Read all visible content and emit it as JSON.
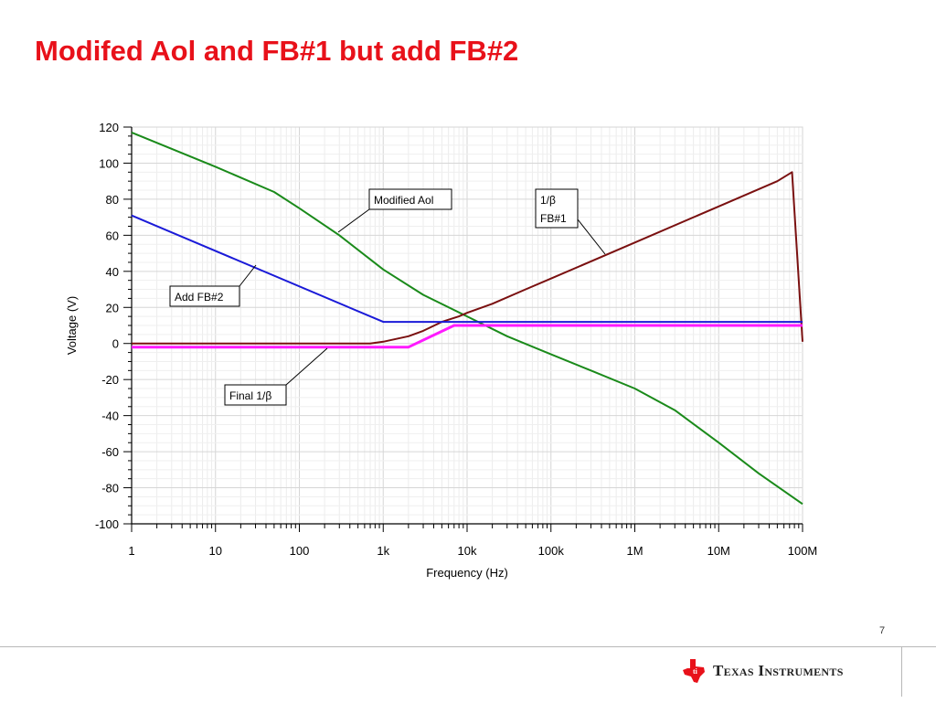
{
  "slide": {
    "title": "Modifed Aol and FB#1 but add FB#2",
    "page_number": "7",
    "brand": "Texas Instruments",
    "brand_color": "#e8111a"
  },
  "chart_data": {
    "type": "line",
    "xlabel": "Frequency (Hz)",
    "ylabel": "Voltage (V)",
    "x_scale": "log",
    "xlim": [
      1,
      100000000
    ],
    "ylim": [
      -100,
      120
    ],
    "x_ticks": [
      1,
      10,
      100,
      1000,
      10000,
      100000,
      1000000,
      10000000,
      100000000
    ],
    "x_tick_labels": [
      "1",
      "10",
      "100",
      "1k",
      "10k",
      "100k",
      "1M",
      "10M",
      "100M"
    ],
    "y_ticks": [
      120,
      100,
      80,
      60,
      40,
      20,
      0,
      -20,
      -40,
      -60,
      -80,
      -100
    ],
    "y_tick_labels": [
      "120",
      "100",
      "80",
      "60",
      "40",
      "20",
      "0",
      "-20",
      "-40",
      "-60",
      "-80",
      "-100"
    ],
    "grid": true,
    "series": [
      {
        "key": "aol",
        "color": "#1a8a1a",
        "points": [
          [
            1,
            117
          ],
          [
            10,
            98
          ],
          [
            50,
            84
          ],
          [
            100,
            75
          ],
          [
            300,
            60
          ],
          [
            1000,
            41
          ],
          [
            3000,
            27
          ],
          [
            10000,
            15
          ],
          [
            30000,
            4
          ],
          [
            100000,
            -6
          ],
          [
            300000,
            -15
          ],
          [
            1000000,
            -25
          ],
          [
            3000000,
            -37
          ],
          [
            10000000,
            -55
          ],
          [
            30000000,
            -72
          ],
          [
            100000000,
            -89
          ]
        ]
      },
      {
        "key": "fb1",
        "color": "#7a1010",
        "points": [
          [
            1,
            0
          ],
          [
            700,
            0
          ],
          [
            1000,
            1
          ],
          [
            2000,
            4
          ],
          [
            3000,
            7
          ],
          [
            5000,
            12
          ],
          [
            8000,
            15
          ],
          [
            10000,
            17
          ],
          [
            20000,
            22
          ],
          [
            50000,
            30
          ],
          [
            100000,
            36
          ],
          [
            1000000,
            56
          ],
          [
            10000000,
            76
          ],
          [
            50000000,
            90
          ],
          [
            75000000,
            95
          ],
          [
            100000000,
            1
          ]
        ]
      },
      {
        "key": "fb2",
        "color": "#1a1ad8",
        "points": [
          [
            1,
            71
          ],
          [
            1000,
            12
          ],
          [
            100000000,
            12
          ]
        ]
      },
      {
        "key": "final",
        "color": "#ff1aff",
        "points": [
          [
            1,
            -2
          ],
          [
            2000,
            -2
          ],
          [
            7000,
            10
          ],
          [
            100000000,
            10
          ]
        ]
      }
    ],
    "annotations": [
      {
        "key": "aol",
        "lines": [
          "Modified Aol"
        ]
      },
      {
        "key": "fb1",
        "lines": [
          "1/β",
          "FB#1"
        ]
      },
      {
        "key": "fb2",
        "lines": [
          "Add FB#2"
        ]
      },
      {
        "key": "final",
        "lines": [
          "Final 1/β"
        ]
      }
    ]
  }
}
